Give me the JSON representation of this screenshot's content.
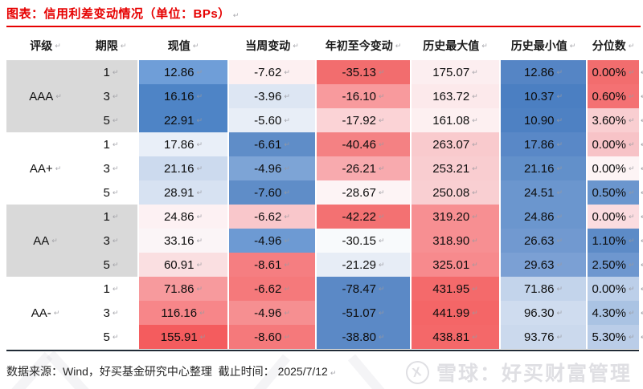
{
  "title": "图表：信用利差变动情况（单位：BPs）",
  "marks": {
    "ret": "↵"
  },
  "colors": {
    "accent_red": "#e60000",
    "group_gray": "#d9d9d9",
    "bottom_rule": "#212b36",
    "watermark": "#dfdfe3"
  },
  "header": {
    "rating": "评级",
    "term": "期限",
    "current": "现值",
    "weekly": "当周变动",
    "ytd": "年初至今变动",
    "max": "历史最大值",
    "min": "历史最小值",
    "pct": "分位数"
  },
  "table": {
    "col_keys": [
      "current",
      "weekly",
      "ytd",
      "max",
      "min",
      "pct"
    ],
    "groups": [
      {
        "rating": "AAA",
        "bg": "#d9d9d9",
        "terms": [
          "1",
          "3",
          "5"
        ]
      },
      {
        "rating": "AA+",
        "bg": "#ffffff",
        "terms": [
          "1",
          "3",
          "5"
        ]
      },
      {
        "rating": "AA",
        "bg": "#d9d9d9",
        "terms": [
          "1",
          "3",
          "5"
        ]
      },
      {
        "rating": "AA-",
        "bg": "#ffffff",
        "terms": [
          "1",
          "3",
          "5"
        ]
      }
    ],
    "rows": [
      {
        "cells": [
          {
            "v": "12.86",
            "bg": "#6f9ed8"
          },
          {
            "v": "-7.62",
            "bg": "#fdf0f1"
          },
          {
            "v": "-35.13",
            "bg": "#f26d6e"
          },
          {
            "v": "175.07",
            "bg": "#fceef0"
          },
          {
            "v": "12.86",
            "bg": "#5585c5"
          },
          {
            "v": "0.00%",
            "bg": "#f26d6e"
          }
        ]
      },
      {
        "cells": [
          {
            "v": "16.16",
            "bg": "#4e84c6"
          },
          {
            "v": "-3.96",
            "bg": "#dde6f3"
          },
          {
            "v": "-16.10",
            "bg": "#f89a9d"
          },
          {
            "v": "163.72",
            "bg": "#fce9eb"
          },
          {
            "v": "10.37",
            "bg": "#4b7fc2"
          },
          {
            "v": "0.60%",
            "bg": "#f47173"
          }
        ]
      },
      {
        "cells": [
          {
            "v": "22.91",
            "bg": "#4e84c6"
          },
          {
            "v": "-5.60",
            "bg": "#e8eef7"
          },
          {
            "v": "-17.92",
            "bg": "#fbd3d6"
          },
          {
            "v": "161.08",
            "bg": "#fdf0f1"
          },
          {
            "v": "10.90",
            "bg": "#4e81c3"
          },
          {
            "v": "3.60%",
            "bg": "#f9ced1"
          }
        ]
      },
      {
        "cells": [
          {
            "v": "17.86",
            "bg": "#e9eff8"
          },
          {
            "v": "-6.61",
            "bg": "#5f8dc8"
          },
          {
            "v": "-40.46",
            "bg": "#f48183"
          },
          {
            "v": "263.07",
            "bg": "#f9cacd"
          },
          {
            "v": "17.86",
            "bg": "#5988c7"
          },
          {
            "v": "0.00%",
            "bg": "#f7c3c7"
          }
        ]
      },
      {
        "cells": [
          {
            "v": "21.16",
            "bg": "#ccdaee"
          },
          {
            "v": "-4.96",
            "bg": "#7da4d6"
          },
          {
            "v": "-26.21",
            "bg": "#f8aaae"
          },
          {
            "v": "253.21",
            "bg": "#f9cdd0"
          },
          {
            "v": "21.16",
            "bg": "#6290ca"
          },
          {
            "v": "0.00%",
            "bg": "#fdf4f5"
          }
        ]
      },
      {
        "cells": [
          {
            "v": "28.91",
            "bg": "#d7e2f2"
          },
          {
            "v": "-7.60",
            "bg": "#5f8dc8"
          },
          {
            "v": "-28.67",
            "bg": "#fdf4f5"
          },
          {
            "v": "250.08",
            "bg": "#f9cfd2"
          },
          {
            "v": "24.51",
            "bg": "#6b96ce"
          },
          {
            "v": "0.50%",
            "bg": "#6b96ce"
          }
        ]
      },
      {
        "cells": [
          {
            "v": "24.86",
            "bg": "#fdf1f3"
          },
          {
            "v": "-6.62",
            "bg": "#f9c7cb"
          },
          {
            "v": "-42.22",
            "bg": "#f37172"
          },
          {
            "v": "319.20",
            "bg": "#f78f92"
          },
          {
            "v": "24.86",
            "bg": "#6b96ce"
          },
          {
            "v": "0.00%",
            "bg": "#fbdce0"
          }
        ]
      },
      {
        "cells": [
          {
            "v": "33.16",
            "bg": "#fbf5f7"
          },
          {
            "v": "-4.96",
            "bg": "#6d9ad3"
          },
          {
            "v": "-30.15",
            "bg": "#f8fafc"
          },
          {
            "v": "318.90",
            "bg": "#f78f92"
          },
          {
            "v": "26.63",
            "bg": "#7199d0"
          },
          {
            "v": "1.10%",
            "bg": "#5d8bc7"
          }
        ]
      },
      {
        "cells": [
          {
            "v": "60.91",
            "bg": "#fadfe1"
          },
          {
            "v": "-8.61",
            "bg": "#f57e81"
          },
          {
            "v": "-21.29",
            "bg": "#e7edf6"
          },
          {
            "v": "325.01",
            "bg": "#f78a8d"
          },
          {
            "v": "29.63",
            "bg": "#7ba0d4"
          },
          {
            "v": "2.50%",
            "bg": "#6e97cf"
          }
        ]
      },
      {
        "cells": [
          {
            "v": "71.86",
            "bg": "#f79a9d"
          },
          {
            "v": "-6.62",
            "bg": "#f5797b"
          },
          {
            "v": "-78.47",
            "bg": "#5b89c6"
          },
          {
            "v": "431.95",
            "bg": "#f46a6b"
          },
          {
            "v": "71.86",
            "bg": "#c3d4eb"
          },
          {
            "v": "0.00%",
            "bg": "#bccfe9"
          }
        ]
      },
      {
        "cells": [
          {
            "v": "116.16",
            "bg": "#f78689"
          },
          {
            "v": "-4.96",
            "bg": "#f68f91"
          },
          {
            "v": "-51.07",
            "bg": "#5b89c6"
          },
          {
            "v": "441.99",
            "bg": "#f46667"
          },
          {
            "v": "96.30",
            "bg": "#cfdcef"
          },
          {
            "v": "4.30%",
            "bg": "#aac3e3"
          }
        ]
      },
      {
        "cells": [
          {
            "v": "155.91",
            "bg": "#f45c5e"
          },
          {
            "v": "-8.60",
            "bg": "#f5797b"
          },
          {
            "v": "-38.80",
            "bg": "#5b89c6"
          },
          {
            "v": "438.81",
            "bg": "#f46869"
          },
          {
            "v": "93.76",
            "bg": "#cbd9ed"
          },
          {
            "v": "5.30%",
            "bg": "#bacde8"
          }
        ]
      }
    ]
  },
  "footer": {
    "text": "数据来源：Wind，好买基金研究中心整理  截止时间： 2025/7/12"
  },
  "watermark": {
    "logo": "X",
    "text": "雪球：好买财富管理"
  },
  "chart_data": {
    "type": "table",
    "title": "图表：信用利差变动情况（单位：BPs）",
    "columns": [
      "评级",
      "期限",
      "现值",
      "当周变动",
      "年初至今变动",
      "历史最大值",
      "历史最小值",
      "分位数"
    ],
    "rows": [
      [
        "AAA",
        "1",
        12.86,
        -7.62,
        -35.13,
        175.07,
        12.86,
        "0.00%"
      ],
      [
        "AAA",
        "3",
        16.16,
        -3.96,
        -16.1,
        163.72,
        10.37,
        "0.60%"
      ],
      [
        "AAA",
        "5",
        22.91,
        -5.6,
        -17.92,
        161.08,
        10.9,
        "3.60%"
      ],
      [
        "AA+",
        "1",
        17.86,
        -6.61,
        -40.46,
        263.07,
        17.86,
        "0.00%"
      ],
      [
        "AA+",
        "3",
        21.16,
        -4.96,
        -26.21,
        253.21,
        21.16,
        "0.00%"
      ],
      [
        "AA+",
        "5",
        28.91,
        -7.6,
        -28.67,
        250.08,
        24.51,
        "0.50%"
      ],
      [
        "AA",
        "1",
        24.86,
        -6.62,
        -42.22,
        319.2,
        24.86,
        "0.00%"
      ],
      [
        "AA",
        "3",
        33.16,
        -4.96,
        -30.15,
        318.9,
        26.63,
        "1.10%"
      ],
      [
        "AA",
        "5",
        60.91,
        -8.61,
        -21.29,
        325.01,
        29.63,
        "2.50%"
      ],
      [
        "AA-",
        "1",
        71.86,
        -6.62,
        -78.47,
        431.95,
        71.86,
        "0.00%"
      ],
      [
        "AA-",
        "3",
        116.16,
        -4.96,
        -51.07,
        441.99,
        96.3,
        "4.30%"
      ],
      [
        "AA-",
        "5",
        155.91,
        -8.6,
        -38.8,
        438.81,
        93.76,
        "5.30%"
      ]
    ],
    "legend": "red = high / unfavorable, blue = low / favorable (heatmap conditional formatting)",
    "grid": false
  }
}
